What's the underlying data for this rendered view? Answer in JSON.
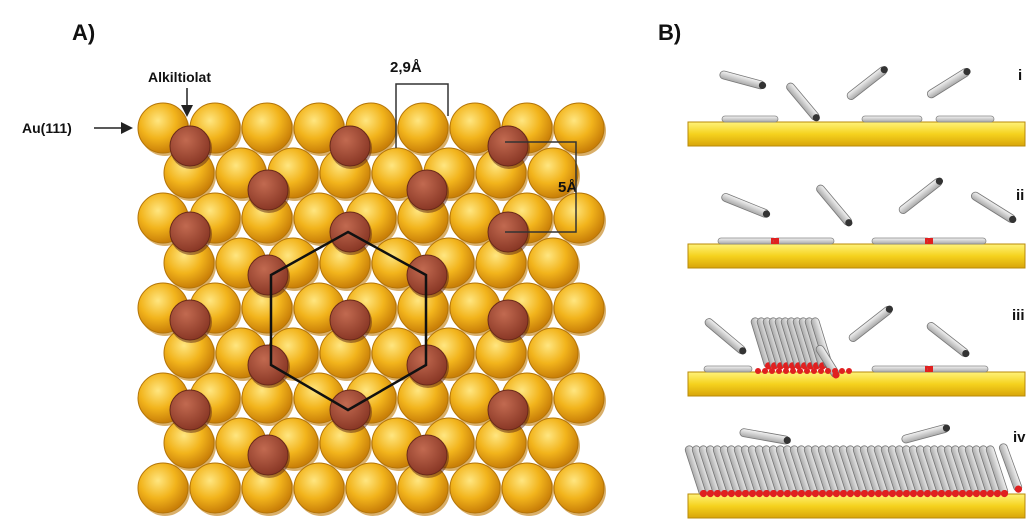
{
  "panel_a": {
    "label": "A)",
    "substrate_label": "Au(111)",
    "adsorbate_label": "Alkiltiolat",
    "spacing_label": "2,9Å",
    "row_spacing_label": "5Å",
    "colors": {
      "gold_atom": "#f2b41c",
      "gold_shadow": "#d48a0a",
      "thiolate": "#a24a35"
    }
  },
  "panel_b": {
    "label": "B)",
    "steps": [
      "i",
      "ii",
      "iii",
      "iv"
    ],
    "colors": {
      "substrate": "#f5d21e",
      "molecule": "#d9d9d9",
      "head_group": "#e02020"
    }
  }
}
